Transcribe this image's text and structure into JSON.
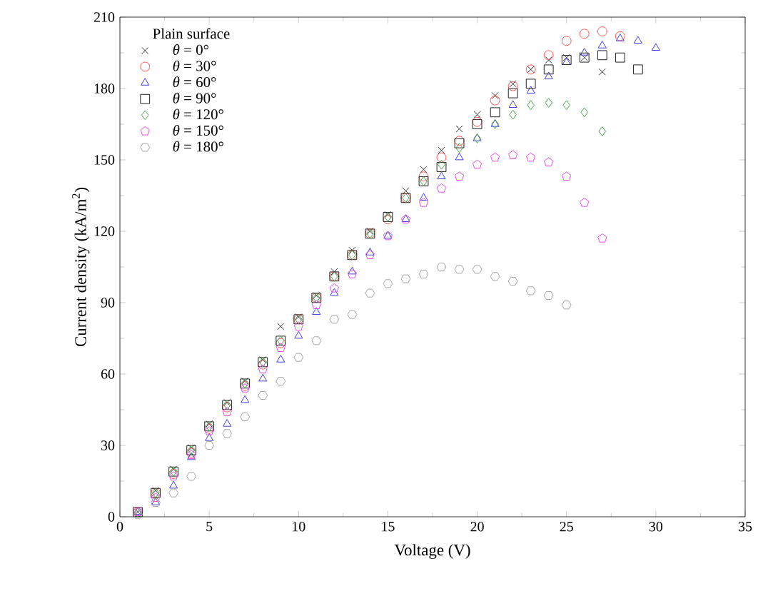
{
  "chart_data": {
    "type": "scatter",
    "xlabel": "Voltage (V)",
    "ylabel": "Current density (kA/m$^{2}$)",
    "legend_title": "Plain surface",
    "legend": "top left",
    "grid": false,
    "xlim": [
      0,
      35
    ],
    "xticks": [
      0,
      5,
      10,
      15,
      20,
      25,
      30,
      35
    ],
    "ylim": [
      0,
      210
    ],
    "yticks": [
      0,
      30,
      60,
      90,
      120,
      150,
      180,
      210
    ],
    "series": [
      {
        "name": "*θ* = 0°",
        "color": "#333333",
        "marker": "cross",
        "x": [
          1,
          2,
          3,
          4,
          5,
          6,
          7,
          8,
          9,
          10,
          11,
          12,
          13,
          14,
          15,
          16,
          17,
          18,
          19,
          20,
          21,
          22,
          23,
          24,
          25,
          26,
          27
        ],
        "values": [
          2,
          11,
          20,
          29,
          39,
          48,
          57,
          66,
          80,
          84,
          93,
          103,
          112,
          120,
          127,
          137,
          146,
          154,
          163,
          169,
          177,
          182,
          188,
          192,
          193,
          193,
          187
        ]
      },
      {
        "name": "*θ* = 30°",
        "color": "#ff4d4d",
        "marker": "circle",
        "x": [
          1,
          2,
          3,
          4,
          5,
          6,
          7,
          8,
          9,
          10,
          11,
          12,
          13,
          14,
          15,
          16,
          17,
          18,
          19,
          20,
          21,
          22,
          23,
          24,
          25,
          26,
          27,
          28
        ],
        "values": [
          2,
          10,
          18,
          27,
          37,
          46,
          55,
          64,
          73,
          83,
          92,
          101,
          110,
          119,
          125,
          134,
          143,
          151,
          158,
          166,
          175,
          181,
          188,
          194,
          200,
          203,
          204,
          202
        ]
      },
      {
        "name": "*θ* = 60°",
        "color": "#4040e0",
        "marker": "triangle",
        "x": [
          1,
          2,
          3,
          4,
          5,
          6,
          7,
          8,
          9,
          10,
          11,
          12,
          13,
          14,
          15,
          16,
          17,
          18,
          19,
          20,
          21,
          22,
          23,
          24,
          25,
          26,
          27,
          28,
          29,
          30
        ],
        "values": [
          2,
          6,
          13,
          25,
          33,
          39,
          49,
          58,
          66,
          76,
          86,
          94,
          103,
          111,
          118,
          125,
          134,
          143,
          151,
          159,
          165,
          173,
          179,
          185,
          191,
          195,
          198,
          201,
          200,
          197
        ]
      },
      {
        "name": "*θ* = 90°",
        "color": "#222222",
        "marker": "square",
        "x": [
          1,
          2,
          3,
          4,
          5,
          6,
          7,
          8,
          9,
          10,
          11,
          12,
          13,
          14,
          15,
          16,
          17,
          18,
          19,
          20,
          21,
          22,
          23,
          24,
          25,
          26,
          27,
          28,
          29
        ],
        "values": [
          2,
          10,
          19,
          28,
          38,
          47,
          56,
          65,
          74,
          83,
          92,
          101,
          110,
          119,
          126,
          134,
          141,
          147,
          157,
          165,
          170,
          178,
          182,
          188,
          192,
          193,
          194,
          193,
          188
        ]
      },
      {
        "name": "*θ* = 120°",
        "color": "#4ca64c",
        "marker": "diamond",
        "x": [
          1,
          2,
          3,
          4,
          5,
          6,
          7,
          8,
          9,
          10,
          11,
          12,
          13,
          14,
          15,
          16,
          17,
          18,
          19,
          20,
          21,
          22,
          23,
          24,
          25,
          26,
          27
        ],
        "values": [
          2,
          10,
          19,
          28,
          38,
          47,
          56,
          65,
          74,
          83,
          92,
          101,
          110,
          119,
          126,
          134,
          141,
          148,
          155,
          159,
          165,
          169,
          173,
          174,
          173,
          170,
          162
        ]
      },
      {
        "name": "*θ* = 150°",
        "color": "#e64de6",
        "x": [
          1,
          2,
          3,
          4,
          5,
          6,
          7,
          8,
          9,
          10,
          11,
          12,
          13,
          14,
          15,
          16,
          17,
          18,
          19,
          20,
          21,
          22,
          23,
          24,
          25,
          26,
          27
        ],
        "values": [
          2,
          8,
          17,
          26,
          36,
          44,
          54,
          62,
          71,
          80,
          89,
          96,
          102,
          110,
          118,
          125,
          132,
          138,
          143,
          148,
          151,
          152,
          151,
          149,
          143,
          132,
          117
        ]
      },
      {
        "name": "*θ* = 180°",
        "color": "#a6a6a6",
        "x": [
          1,
          2,
          3,
          4,
          5,
          6,
          7,
          8,
          9,
          10,
          11,
          12,
          13,
          14,
          15,
          16,
          17,
          18,
          19,
          20,
          21,
          22,
          23,
          24,
          25
        ],
        "values": [
          1,
          6,
          10,
          17,
          30,
          35,
          42,
          51,
          57,
          67,
          74,
          83,
          85,
          94,
          98,
          100,
          102,
          105,
          104,
          104,
          101,
          99,
          95,
          93,
          89
        ]
      }
    ]
  }
}
